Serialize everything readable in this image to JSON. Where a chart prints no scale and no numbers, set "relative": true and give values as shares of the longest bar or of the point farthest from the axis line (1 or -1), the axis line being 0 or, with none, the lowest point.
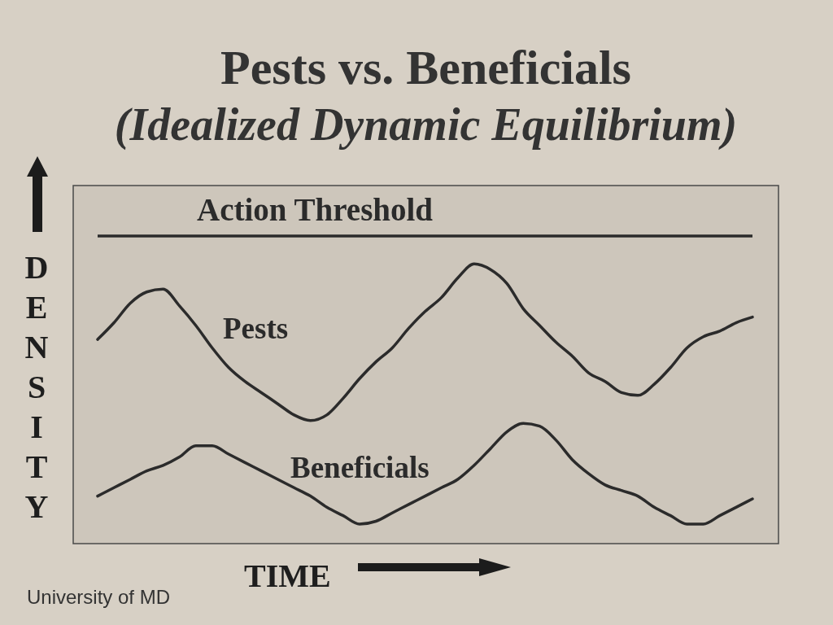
{
  "chart_data": {
    "type": "line",
    "title": "Pests vs. Beneficials",
    "subtitle": "(Idealized Dynamic Equilibrium)",
    "xlabel": "TIME",
    "ylabel": "DENSITY",
    "relative": true,
    "line_style": "solid",
    "categories": [
      null,
      null,
      null,
      null,
      null,
      null,
      null,
      null,
      null,
      null,
      null,
      null,
      null,
      null,
      null,
      null,
      null,
      null,
      null,
      null,
      null,
      null,
      null,
      null,
      null,
      null,
      null,
      null,
      null,
      null,
      null,
      null,
      null,
      null,
      null,
      null,
      null,
      null,
      null,
      null,
      null
    ],
    "series": [
      {
        "name": "Pests",
        "color": "#2b2b2b",
        "values": [
          0.73,
          0.79,
          0.86,
          0.9,
          0.91,
          0.85,
          0.78,
          0.7,
          0.63,
          0.58,
          0.54,
          0.5,
          0.46,
          0.44,
          0.46,
          0.52,
          0.59,
          0.65,
          0.7,
          0.77,
          0.83,
          0.88,
          0.95,
          1.0,
          0.98,
          0.93,
          0.84,
          0.78,
          0.72,
          0.67,
          0.61,
          0.58,
          0.54,
          0.53,
          0.57,
          0.63,
          0.7,
          0.74,
          0.76,
          0.79,
          0.81
        ]
      },
      {
        "name": "Beneficials",
        "color": "#2b2b2b",
        "values": [
          0.17,
          0.2,
          0.23,
          0.26,
          0.28,
          0.31,
          0.35,
          0.35,
          0.32,
          0.29,
          0.26,
          0.23,
          0.2,
          0.17,
          0.13,
          0.1,
          0.07,
          0.08,
          0.11,
          0.14,
          0.17,
          0.2,
          0.23,
          0.28,
          0.34,
          0.4,
          0.43,
          0.42,
          0.37,
          0.3,
          0.25,
          0.21,
          0.19,
          0.17,
          0.13,
          0.1,
          0.07,
          0.07,
          0.1,
          0.13,
          0.16
        ]
      }
    ],
    "ref_lines": [
      {
        "axis": "y",
        "value": 1.1,
        "label": "Action Threshold",
        "color": "#2b2b2b"
      }
    ],
    "annotations": [
      "University of MD"
    ]
  }
}
